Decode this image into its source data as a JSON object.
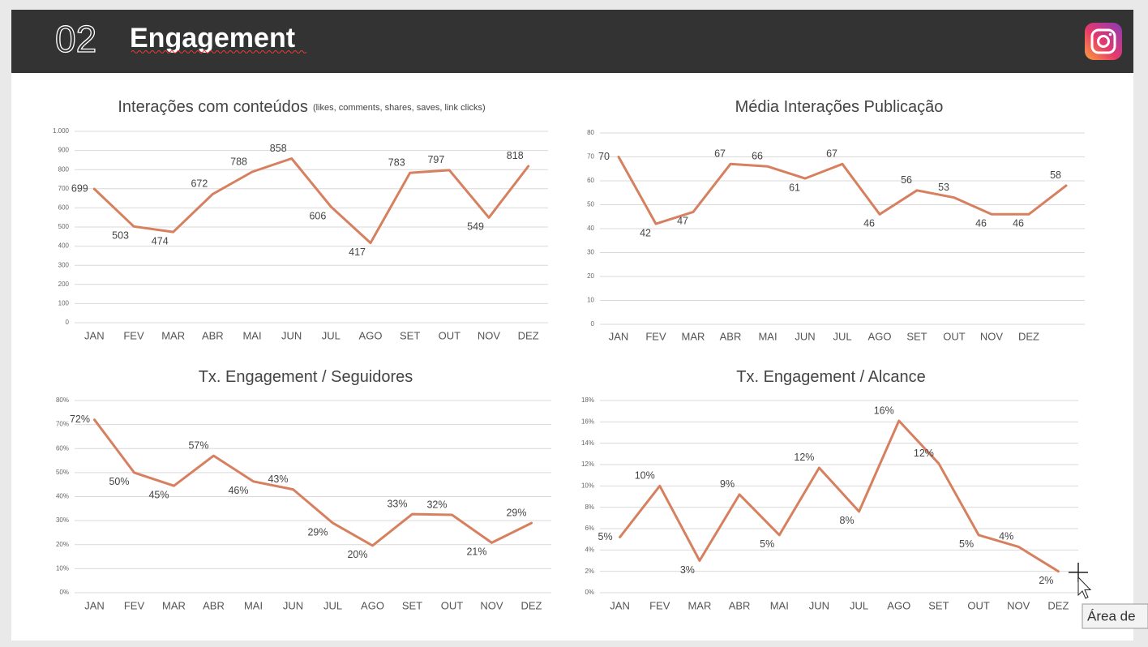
{
  "header": {
    "number": "02",
    "title": "Engagement"
  },
  "tooltip": "Área de",
  "chart_data": [
    {
      "type": "line",
      "title": "Interações com conteúdos",
      "subtitle": "(likes, comments, shares, saves, link clicks)",
      "categories": [
        "JAN",
        "FEV",
        "MAR",
        "ABR",
        "MAI",
        "JUN",
        "JUL",
        "AGO",
        "SET",
        "OUT",
        "NOV",
        "DEZ"
      ],
      "values": [
        699,
        503,
        474,
        672,
        788,
        858,
        606,
        417,
        783,
        797,
        549,
        818
      ],
      "color": "#d6805f",
      "ylim": [
        0,
        1000
      ],
      "yticks": [
        0,
        100,
        200,
        300,
        400,
        500,
        600,
        700,
        800,
        900,
        {
          "value": 1000,
          "label": "1.000"
        }
      ],
      "grid": true
    },
    {
      "type": "line",
      "title": "Média Interações Publicação",
      "categories": [
        "JAN",
        "FEV",
        "MAR",
        "ABR",
        "MAI",
        "JUN",
        "JUL",
        "AGO",
        "SET",
        "OUT",
        "NOV",
        "DEZ",
        null
      ],
      "values": [
        70,
        42,
        47,
        67,
        66,
        61,
        67,
        46,
        56,
        53,
        46,
        46,
        58
      ],
      "color": "#d6805f",
      "ylim": [
        0,
        80
      ],
      "yticks": [
        0,
        10,
        20,
        30,
        40,
        50,
        60,
        70,
        80
      ],
      "grid": true
    },
    {
      "type": "line",
      "title": "Tx. Engagement / Seguidores",
      "categories": [
        "JAN",
        "FEV",
        "MAR",
        "ABR",
        "MAI",
        "JUN",
        "JUL",
        "AGO",
        "SET",
        "OUT",
        "NOV",
        "DEZ"
      ],
      "values": [
        72,
        50,
        44.5,
        57,
        46.3,
        43,
        29,
        19.6,
        32.7,
        32.4,
        20.8,
        29
      ],
      "value_labels": [
        "72%",
        "50%",
        "45%",
        "57%",
        "46%",
        "43%",
        "29%",
        "20%",
        "33%",
        "32%",
        "21%",
        "29%"
      ],
      "color": "#d6805f",
      "ylim": [
        0,
        80
      ],
      "yticks": [
        {
          "value": 0,
          "label": "0%"
        },
        {
          "value": 10,
          "label": "10%"
        },
        {
          "value": 20,
          "label": "20%"
        },
        {
          "value": 30,
          "label": "30%"
        },
        {
          "value": 40,
          "label": "40%"
        },
        {
          "value": 50,
          "label": "50%"
        },
        {
          "value": 60,
          "label": "60%"
        },
        {
          "value": 70,
          "label": "70%"
        },
        {
          "value": 80,
          "label": "80%"
        }
      ],
      "grid": true
    },
    {
      "type": "line",
      "title": "Tx. Engagement / Alcance",
      "categories": [
        "JAN",
        "FEV",
        "MAR",
        "ABR",
        "MAI",
        "JUN",
        "JUL",
        "AGO",
        "SET",
        "OUT",
        "NOV",
        "DEZ"
      ],
      "values": [
        5.2,
        10,
        3,
        9.2,
        5.4,
        11.7,
        7.6,
        16.1,
        12.1,
        5.4,
        4.3,
        2
      ],
      "value_labels": [
        "5%",
        "10%",
        "3%",
        "9%",
        "5%",
        "12%",
        "8%",
        "16%",
        "12%",
        "5%",
        "4%",
        "2%"
      ],
      "color": "#d6805f",
      "ylim": [
        0,
        18
      ],
      "yticks": [
        {
          "value": 0,
          "label": "0%"
        },
        {
          "value": 2,
          "label": "2%"
        },
        {
          "value": 4,
          "label": "4%"
        },
        {
          "value": 6,
          "label": "6%"
        },
        {
          "value": 8,
          "label": "8%"
        },
        {
          "value": 10,
          "label": "10%"
        },
        {
          "value": 12,
          "label": "12%"
        },
        {
          "value": 14,
          "label": "14%"
        },
        {
          "value": 16,
          "label": "16%"
        },
        {
          "value": 18,
          "label": "18%"
        }
      ],
      "grid": true
    }
  ]
}
